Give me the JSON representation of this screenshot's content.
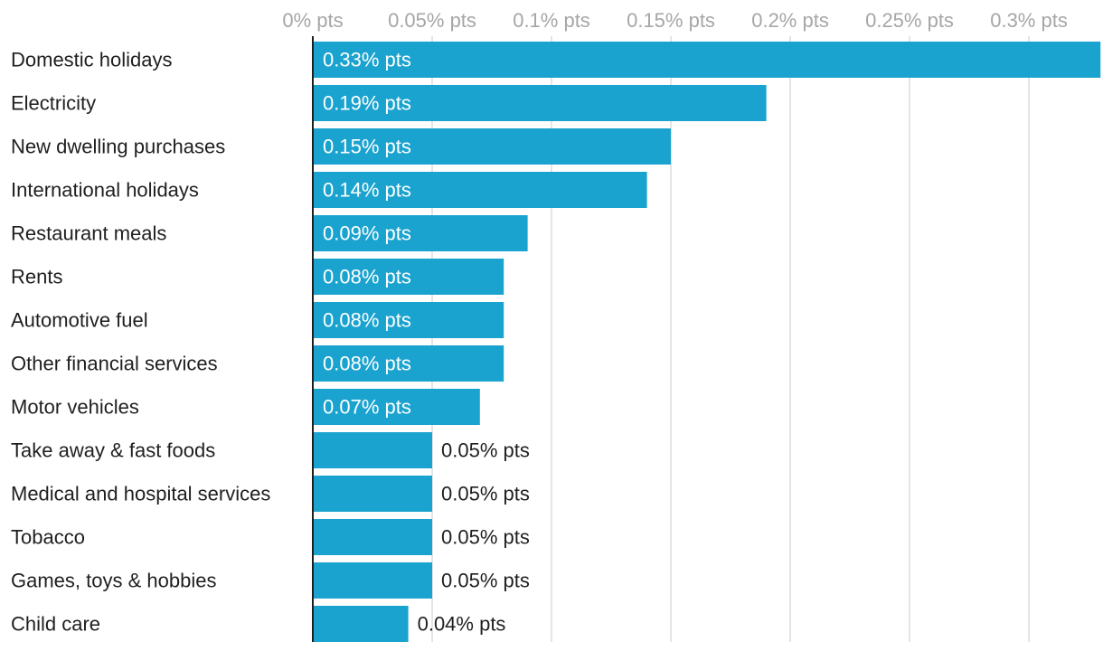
{
  "chart_data": {
    "type": "bar",
    "orientation": "horizontal",
    "title": "",
    "xlabel": "",
    "ylabel": "",
    "xlim": [
      0,
      0.3265
    ],
    "x_ticks": [
      0,
      0.05,
      0.1,
      0.15,
      0.2,
      0.25,
      0.3
    ],
    "x_tick_labels": [
      "0% pts",
      "0.05% pts",
      "0.1% pts",
      "0.15% pts",
      "0.2% pts",
      "0.25% pts",
      "0.3% pts"
    ],
    "grid": true,
    "categories": [
      "Domestic holidays",
      "Electricity",
      "New dwelling purchases",
      "International holidays",
      "Restaurant meals",
      "Rents",
      "Automotive fuel",
      "Other financial services",
      "Motor vehicles",
      "Take away & fast foods",
      "Medical and hospital services",
      "Tobacco",
      "Games, toys & hobbies",
      "Child care"
    ],
    "values": [
      0.33,
      0.19,
      0.15,
      0.14,
      0.09,
      0.08,
      0.08,
      0.08,
      0.07,
      0.05,
      0.05,
      0.05,
      0.05,
      0.04
    ],
    "value_labels": [
      "0.33% pts",
      "0.19% pts",
      "0.15% pts",
      "0.14% pts",
      "0.09% pts",
      "0.08% pts",
      "0.08% pts",
      "0.08% pts",
      "0.07% pts",
      "0.05% pts",
      "0.05% pts",
      "0.05% pts",
      "0.05% pts",
      "0.04% pts"
    ],
    "bar_color": "#1ba3cf"
  }
}
